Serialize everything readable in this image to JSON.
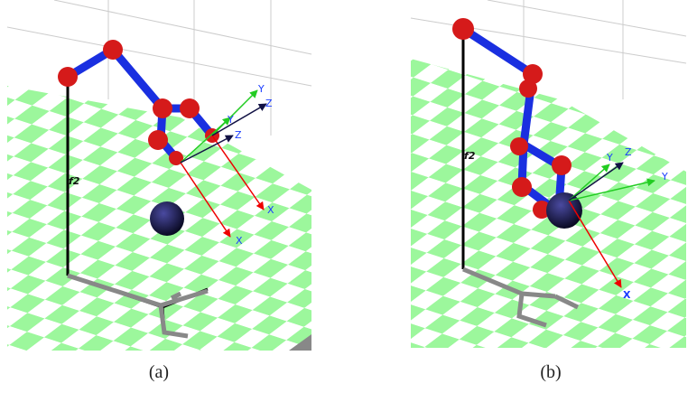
{
  "panels": [
    {
      "caption": "(a)",
      "frame_label": "f2",
      "axis_labels": [
        "Y",
        "Z",
        "Y",
        "Z",
        "X",
        "X"
      ]
    },
    {
      "caption": "(b)",
      "frame_label": "f2",
      "axis_labels": [
        "Y",
        "Z",
        "Y",
        "X"
      ]
    }
  ]
}
